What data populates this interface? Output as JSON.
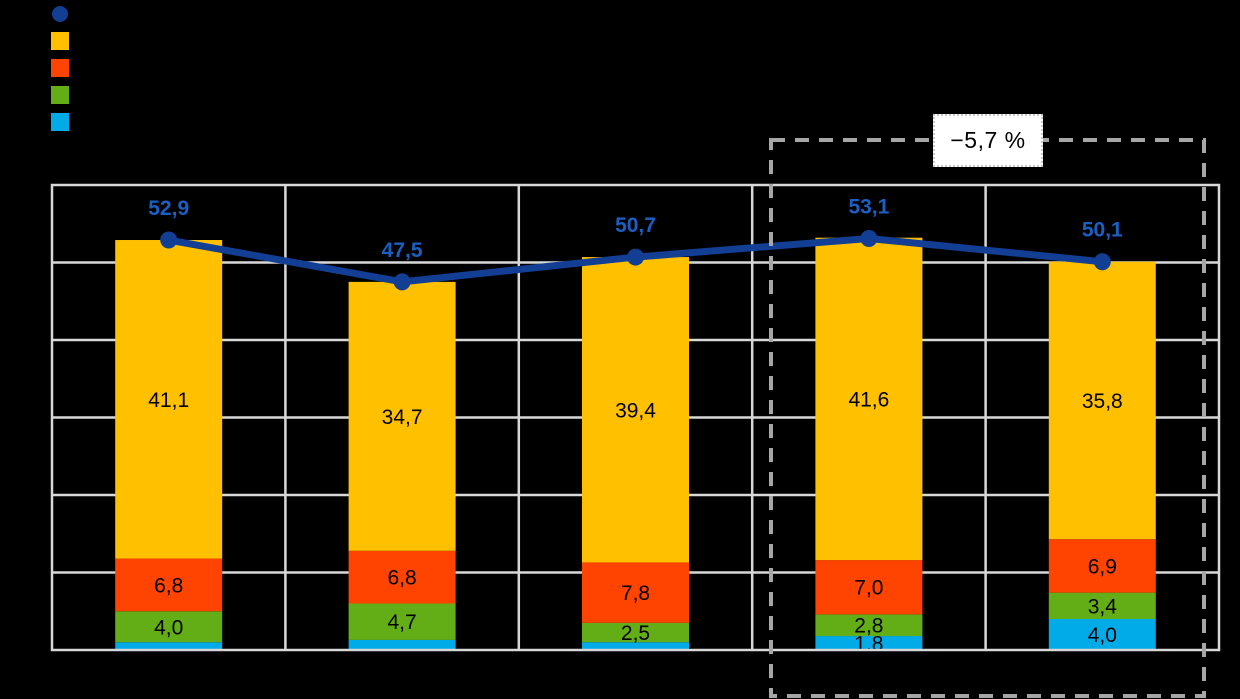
{
  "background_color": "#000000",
  "legend": {
    "items": [
      {
        "label": "",
        "marker": "circle",
        "color": "#123e93"
      },
      {
        "label": "",
        "marker": "square",
        "color": "#ffc000"
      },
      {
        "label": "",
        "marker": "square",
        "color": "#ff4300"
      },
      {
        "label": "",
        "marker": "square",
        "color": "#63ad17"
      },
      {
        "label": "",
        "marker": "square",
        "color": "#00abe8"
      }
    ]
  },
  "annotation": {
    "text": "−5,7 %",
    "text_color": "#ee1111",
    "box_color": "#ffffff"
  },
  "chart_data": {
    "type": "bar",
    "subtype": "stacked-columns-with-total-line",
    "title": "",
    "xlabel": "",
    "ylabel": "",
    "categories": [
      "",
      "",
      "",
      "",
      ""
    ],
    "ylim": [
      0,
      60
    ],
    "grid_step": 10,
    "grid": true,
    "legend_position": "top-left",
    "grid_color": "#d8d8d8",
    "series": [
      {
        "name": "segment-lightblue",
        "color": "#00abe8",
        "values": [
          1.0,
          1.3,
          1.0,
          1.8,
          4.0
        ],
        "labels": [
          "",
          "",
          "",
          "1,8",
          "4,0"
        ]
      },
      {
        "name": "segment-green",
        "color": "#63ad17",
        "values": [
          4.0,
          4.7,
          2.5,
          2.8,
          3.4
        ],
        "labels": [
          "4,0",
          "4,7",
          "2,5",
          "2,8",
          "3,4"
        ]
      },
      {
        "name": "segment-orange",
        "color": "#ff4300",
        "values": [
          6.8,
          6.8,
          7.8,
          7.0,
          6.9
        ],
        "labels": [
          "6,8",
          "6,8",
          "7,8",
          "7,0",
          "6,9"
        ]
      },
      {
        "name": "segment-yellow",
        "color": "#ffc000",
        "values": [
          41.1,
          34.7,
          39.4,
          41.6,
          35.8
        ],
        "labels": [
          "41,1",
          "34,7",
          "39,4",
          "41,6",
          "35,8"
        ]
      }
    ],
    "line_series": {
      "name": "total-line",
      "color": "#123e93",
      "label_color": "#1b5fc3",
      "values": [
        52.9,
        47.5,
        50.7,
        53.1,
        50.1
      ],
      "labels": [
        "52,9",
        "47,5",
        "50,7",
        "53,1",
        "50,1"
      ]
    },
    "highlight_box": {
      "category_indexes": [
        3,
        4
      ],
      "border_color": "#a6a6a6",
      "annotation": "−5,7 %"
    }
  }
}
